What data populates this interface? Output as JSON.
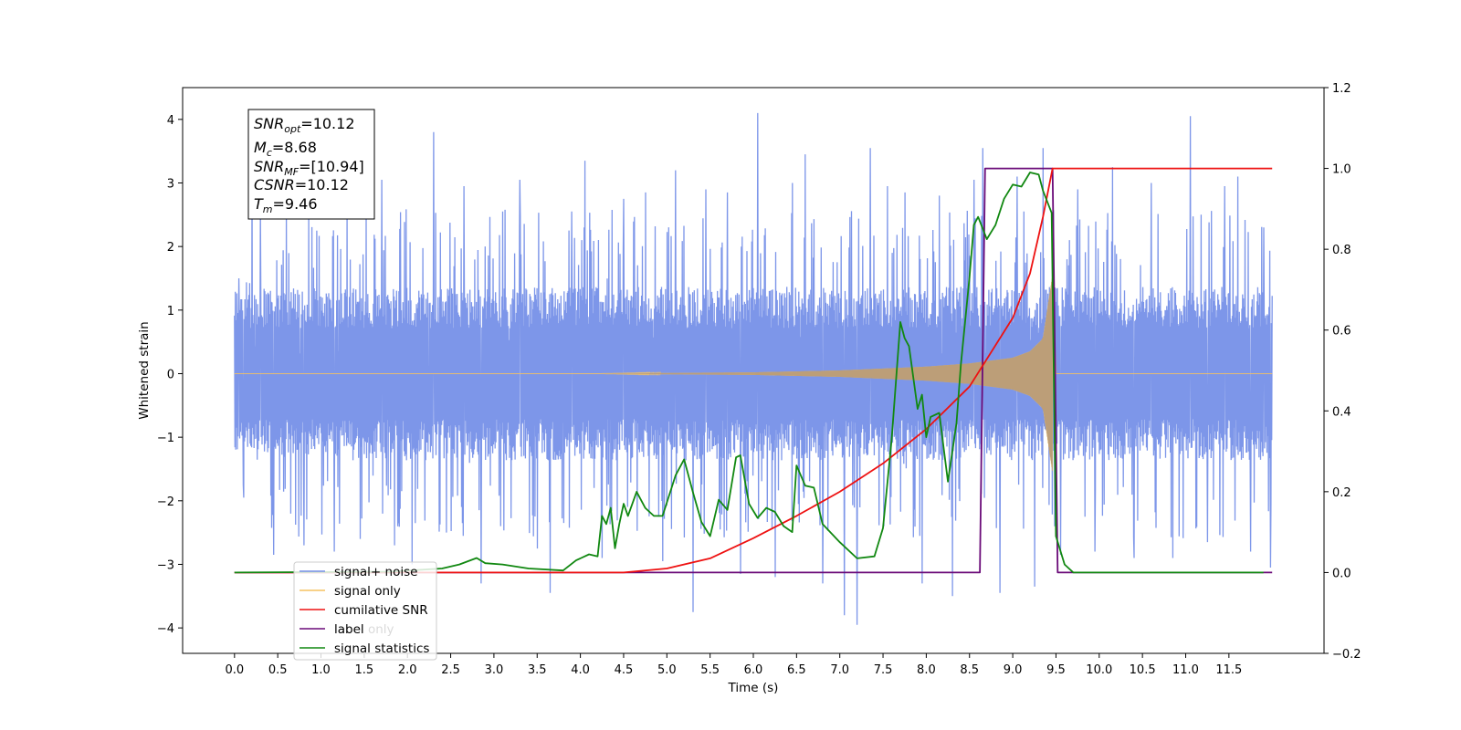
{
  "chart_data": {
    "type": "line",
    "xlabel": "Time (s)",
    "ylabel": "Whitened strain",
    "xlim": [
      -0.6,
      12.6
    ],
    "ylim": [
      -4.4,
      4.5
    ],
    "y2lim": [
      -0.2,
      1.2
    ],
    "x_ticks": [
      "0.0",
      "0.5",
      "1.0",
      "1.5",
      "2.0",
      "2.5",
      "3.0",
      "3.5",
      "4.0",
      "4.5",
      "5.0",
      "5.5",
      "6.0",
      "6.5",
      "7.0",
      "7.5",
      "8.0",
      "8.5",
      "9.0",
      "9.5",
      "10.0",
      "10.5",
      "11.0",
      "11.5"
    ],
    "y_ticks": [
      "4",
      "3",
      "2",
      "1",
      "0",
      "−1",
      "−2",
      "−3",
      "−4"
    ],
    "y2_ticks": [
      "1.2",
      "1.0",
      "0.8",
      "0.6",
      "0.4",
      "0.2",
      "0.0",
      "−0.2"
    ],
    "legend_position": "lower-left",
    "legend": [
      {
        "label": "signal+ noise",
        "color": "#7690e8"
      },
      {
        "label": "signal only",
        "color": "#f5c260"
      },
      {
        "label": "cumilative SNR",
        "color": "#ee1111"
      },
      {
        "label": "label",
        "color": "#6a0a78"
      },
      {
        "label": "signal statistics",
        "color": "#118811"
      }
    ],
    "legend_hidden_label": "label only",
    "info_box": {
      "snr_opt": {
        "name": "SNR",
        "sub": "opt",
        "value": "=10.12"
      },
      "mc": {
        "name": "M",
        "sub": "c",
        "value": "=8.68"
      },
      "snr_mf": {
        "name": "SNR",
        "sub": "MF",
        "value": "=[10.94]"
      },
      "csnr": {
        "name": "CSNR",
        "value": "=10.12"
      },
      "tm": {
        "name": "T",
        "sub": "m",
        "value": "=9.46"
      }
    },
    "series": [
      {
        "name": "signal+ noise",
        "axis": "left",
        "color": "#7690e8",
        "x_range": [
          0.0,
          12.0
        ],
        "band_envelope": {
          "x": [
            0.0,
            12.0
          ],
          "upper": [
            1.3,
            1.3
          ],
          "lower": [
            -1.3,
            -1.3
          ]
        },
        "peaks": [
          {
            "x": 0.05,
            "y": 1.5
          },
          {
            "x": 0.1,
            "y": -1.75
          },
          {
            "x": 0.2,
            "y": 3.35
          },
          {
            "x": 0.3,
            "y": 2.6
          },
          {
            "x": 0.45,
            "y": -2.85
          },
          {
            "x": 0.6,
            "y": 2.55
          },
          {
            "x": 0.8,
            "y": -2.7
          },
          {
            "x": 0.95,
            "y": 2.25
          },
          {
            "x": 1.15,
            "y": -2.8
          },
          {
            "x": 1.3,
            "y": 2.6
          },
          {
            "x": 1.45,
            "y": -2.6
          },
          {
            "x": 1.7,
            "y": 3.05
          },
          {
            "x": 1.85,
            "y": -2.7
          },
          {
            "x": 2.05,
            "y": -3.0
          },
          {
            "x": 2.3,
            "y": 3.8
          },
          {
            "x": 2.45,
            "y": -2.5
          },
          {
            "x": 2.65,
            "y": 2.95
          },
          {
            "x": 2.85,
            "y": -3.3
          },
          {
            "x": 3.1,
            "y": 2.55
          },
          {
            "x": 3.3,
            "y": 3.05
          },
          {
            "x": 3.5,
            "y": -2.75
          },
          {
            "x": 3.65,
            "y": -3.45
          },
          {
            "x": 3.9,
            "y": 2.55
          },
          {
            "x": 4.05,
            "y": 3.35
          },
          {
            "x": 4.25,
            "y": -2.9
          },
          {
            "x": 4.5,
            "y": 2.75
          },
          {
            "x": 4.75,
            "y": 2.85
          },
          {
            "x": 4.95,
            "y": -2.95
          },
          {
            "x": 5.1,
            "y": 3.2
          },
          {
            "x": 5.3,
            "y": -3.75
          },
          {
            "x": 5.45,
            "y": 2.9
          },
          {
            "x": 5.7,
            "y": 2.85
          },
          {
            "x": 5.85,
            "y": -3.15
          },
          {
            "x": 6.05,
            "y": 4.1
          },
          {
            "x": 6.25,
            "y": -3.2
          },
          {
            "x": 6.45,
            "y": 3.0
          },
          {
            "x": 6.6,
            "y": 3.45
          },
          {
            "x": 6.8,
            "y": -3.3
          },
          {
            "x": 7.05,
            "y": -3.8
          },
          {
            "x": 7.2,
            "y": -3.95
          },
          {
            "x": 7.35,
            "y": 3.55
          },
          {
            "x": 7.55,
            "y": 2.95
          },
          {
            "x": 7.75,
            "y": 2.85
          },
          {
            "x": 7.95,
            "y": -3.3
          },
          {
            "x": 8.15,
            "y": 2.8
          },
          {
            "x": 8.3,
            "y": -3.5
          },
          {
            "x": 8.55,
            "y": 3.05
          },
          {
            "x": 8.65,
            "y": 3.55
          },
          {
            "x": 8.85,
            "y": -3.45
          },
          {
            "x": 9.05,
            "y": 3.1
          },
          {
            "x": 9.25,
            "y": -3.35
          },
          {
            "x": 9.35,
            "y": 3.55
          },
          {
            "x": 9.55,
            "y": -2.85
          },
          {
            "x": 9.75,
            "y": 2.9
          },
          {
            "x": 9.95,
            "y": -2.8
          },
          {
            "x": 10.15,
            "y": 3.25
          },
          {
            "x": 10.4,
            "y": -2.9
          },
          {
            "x": 10.6,
            "y": 3.0
          },
          {
            "x": 10.85,
            "y": -2.9
          },
          {
            "x": 11.05,
            "y": 4.05
          },
          {
            "x": 11.25,
            "y": -2.65
          },
          {
            "x": 11.45,
            "y": 2.95
          },
          {
            "x": 11.6,
            "y": 3.1
          },
          {
            "x": 11.75,
            "y": -2.8
          },
          {
            "x": 11.9,
            "y": 2.3
          },
          {
            "x": 11.98,
            "y": -3.05
          }
        ]
      },
      {
        "name": "signal only",
        "axis": "left",
        "color": "#f5c260",
        "x_range": [
          0.0,
          12.0
        ],
        "chirp_start": 4.2,
        "chirp_end": 9.46,
        "envelope": {
          "x": [
            4.2,
            6.0,
            7.0,
            8.0,
            8.5,
            9.0,
            9.2,
            9.35,
            9.46
          ],
          "y": [
            0.0,
            0.02,
            0.05,
            0.11,
            0.16,
            0.25,
            0.35,
            0.55,
            1.55
          ]
        }
      },
      {
        "name": "cumilative SNR",
        "axis": "right",
        "color": "#ee1111",
        "x": [
          0.0,
          4.5,
          5.0,
          5.5,
          6.0,
          6.5,
          7.0,
          7.5,
          8.0,
          8.5,
          9.0,
          9.2,
          9.35,
          9.46,
          12.0
        ],
        "y": [
          0.0,
          0.0,
          0.01,
          0.035,
          0.085,
          0.14,
          0.2,
          0.27,
          0.355,
          0.46,
          0.63,
          0.74,
          0.88,
          1.0,
          1.0
        ]
      },
      {
        "name": "label",
        "axis": "right",
        "color": "#6a0a78",
        "x": [
          0.0,
          8.62,
          8.68,
          9.46,
          9.52,
          12.0
        ],
        "y": [
          0.0,
          0.0,
          1.0,
          1.0,
          0.0,
          0.0
        ]
      },
      {
        "name": "signal statistics",
        "axis": "right",
        "color": "#118811",
        "x": [
          0.0,
          1.8,
          2.4,
          2.6,
          2.8,
          2.9,
          3.1,
          3.4,
          3.8,
          3.95,
          4.1,
          4.2,
          4.25,
          4.3,
          4.35,
          4.4,
          4.45,
          4.5,
          4.55,
          4.65,
          4.75,
          4.85,
          4.95,
          5.1,
          5.2,
          5.3,
          5.4,
          5.5,
          5.6,
          5.7,
          5.8,
          5.85,
          5.95,
          6.05,
          6.15,
          6.25,
          6.35,
          6.45,
          6.5,
          6.6,
          6.7,
          6.8,
          7.0,
          7.2,
          7.4,
          7.5,
          7.6,
          7.7,
          7.75,
          7.8,
          7.9,
          7.95,
          8.0,
          8.05,
          8.15,
          8.25,
          8.35,
          8.4,
          8.5,
          8.55,
          8.6,
          8.7,
          8.8,
          8.9,
          9.0,
          9.1,
          9.2,
          9.3,
          9.35,
          9.45,
          9.5,
          9.6,
          9.7,
          11.9
        ],
        "y": [
          0.0,
          0.002,
          0.01,
          0.02,
          0.036,
          0.023,
          0.02,
          0.01,
          0.005,
          0.03,
          0.045,
          0.04,
          0.14,
          0.12,
          0.16,
          0.06,
          0.12,
          0.17,
          0.14,
          0.2,
          0.16,
          0.14,
          0.14,
          0.24,
          0.28,
          0.2,
          0.125,
          0.09,
          0.18,
          0.155,
          0.285,
          0.29,
          0.17,
          0.135,
          0.16,
          0.15,
          0.115,
          0.1,
          0.265,
          0.215,
          0.21,
          0.12,
          0.075,
          0.035,
          0.04,
          0.11,
          0.33,
          0.62,
          0.58,
          0.56,
          0.405,
          0.44,
          0.335,
          0.385,
          0.395,
          0.225,
          0.37,
          0.515,
          0.73,
          0.86,
          0.88,
          0.825,
          0.86,
          0.925,
          0.96,
          0.955,
          0.99,
          0.985,
          0.945,
          0.89,
          0.09,
          0.02,
          0.0,
          0.0
        ]
      }
    ]
  }
}
